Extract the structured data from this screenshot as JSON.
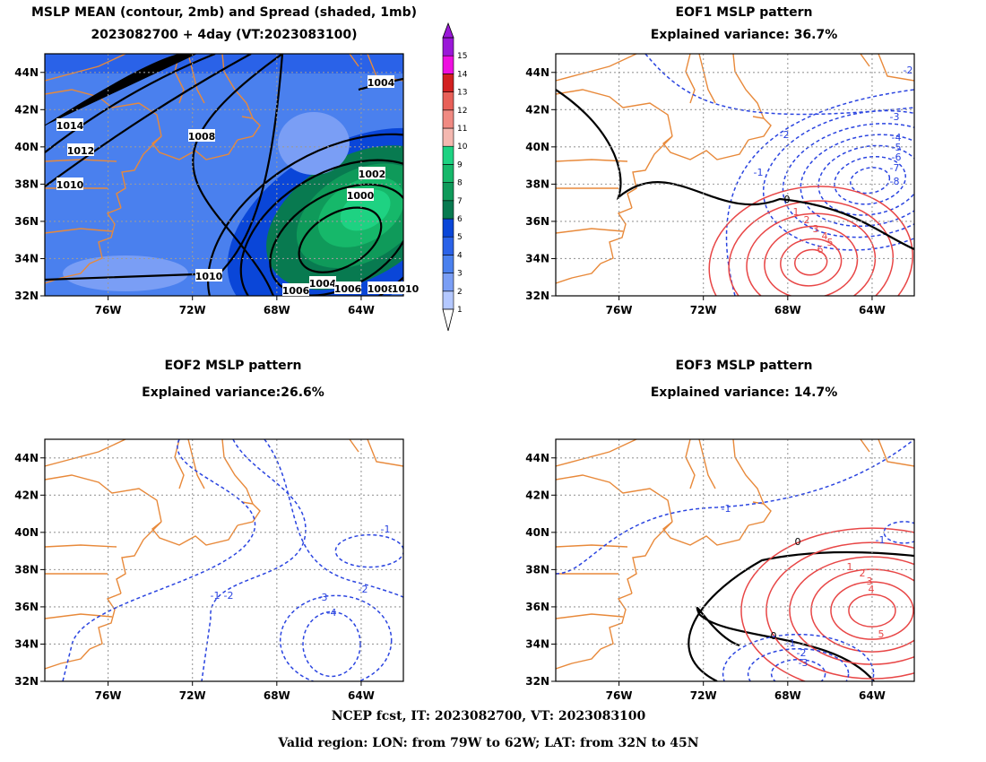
{
  "colors": {
    "coast": "#e8893a",
    "pos_contour": "#e84646",
    "neg_contour": "#2a44e0",
    "zero_contour": "#000000",
    "grid": "#9a9a9a",
    "spread_scale": [
      "#b4c8ff",
      "#7a9ef5",
      "#4a80ee",
      "#2a62e8",
      "#0a46d8",
      "#087a50",
      "#0f9a5a",
      "#16b86a",
      "#1ed282",
      "#f4b8b0",
      "#f08a82",
      "#e86058",
      "#d22020",
      "#ee10e0",
      "#9a18d8"
    ]
  },
  "footer": {
    "line1": "NCEP fcst, IT: 2023082700, VT: 2023083100",
    "line2": "Valid region: LON: from 79W to 62W; LAT: from 32N to 45N"
  },
  "chart_data": [
    {
      "id": "mean_spread",
      "type": "heatmap",
      "title": "MSLP MEAN (contour, 2mb) and Spread (shaded, 1mb)",
      "subtitle": "2023082700 + 4day (VT:2023083100)",
      "lon_range": [
        -79,
        -62
      ],
      "lat_range": [
        32,
        45
      ],
      "x_ticks": [
        "76W",
        "72W",
        "68W",
        "64W"
      ],
      "y_ticks": [
        "32N",
        "34N",
        "36N",
        "38N",
        "40N",
        "42N",
        "44N"
      ],
      "colorbar": {
        "levels": [
          1,
          2,
          3,
          4,
          5,
          6,
          7,
          8,
          9,
          10,
          11,
          12,
          13,
          14,
          15
        ]
      },
      "spread_max": {
        "lon": -63.8,
        "lat": 36.6,
        "value": 9
      },
      "contour_labels": [
        "1014",
        "1012",
        "1010",
        "1008",
        "1004",
        "1002",
        "1000",
        "1010",
        "1004",
        "1006",
        "1008",
        "1010",
        "1006"
      ]
    },
    {
      "id": "eof1",
      "type": "line",
      "title": "EOF1 MSLP pattern",
      "subtitle": "Explained variance: 36.7%",
      "lon_range": [
        -79,
        -62
      ],
      "lat_range": [
        32,
        45
      ],
      "x_ticks": [
        "76W",
        "72W",
        "68W",
        "64W"
      ],
      "y_ticks": [
        "32N",
        "34N",
        "36N",
        "38N",
        "40N",
        "42N",
        "44N"
      ],
      "centers": [
        {
          "sign": "negative",
          "lon": -64.1,
          "lat": 38.2,
          "value": -8
        },
        {
          "sign": "positive",
          "lon": -66.9,
          "lat": 33.8,
          "value": 6
        }
      ],
      "contour_labels": [
        "-2",
        "-3",
        "-2",
        "-4",
        "-5",
        "-6",
        "-7",
        "-8",
        "-1",
        "0",
        "1",
        "2",
        "3",
        "4",
        "5",
        "6"
      ]
    },
    {
      "id": "eof2",
      "type": "line",
      "title": "EOF2 MSLP pattern",
      "subtitle": "Explained variance:26.6%",
      "lon_range": [
        -79,
        -62
      ],
      "lat_range": [
        32,
        45
      ],
      "x_ticks": [
        "76W",
        "72W",
        "68W",
        "64W"
      ],
      "y_ticks": [
        "32N",
        "34N",
        "36N",
        "38N",
        "40N",
        "42N",
        "44N"
      ],
      "contour_labels": [
        "-1",
        "-2",
        "-2",
        "-3",
        "-4",
        "-1"
      ]
    },
    {
      "id": "eof3",
      "type": "line",
      "title": "EOF3 MSLP pattern",
      "subtitle": "Explained variance: 14.7%",
      "lon_range": [
        -79,
        -62
      ],
      "lat_range": [
        32,
        45
      ],
      "x_ticks": [
        "76W",
        "72W",
        "68W",
        "64W"
      ],
      "y_ticks": [
        "32N",
        "34N",
        "36N",
        "38N",
        "40N",
        "42N",
        "44N"
      ],
      "contour_labels": [
        "-1",
        "-1",
        "0",
        "0",
        "1",
        "2",
        "3",
        "4",
        "5",
        "-1",
        "-2",
        "-3"
      ]
    }
  ]
}
